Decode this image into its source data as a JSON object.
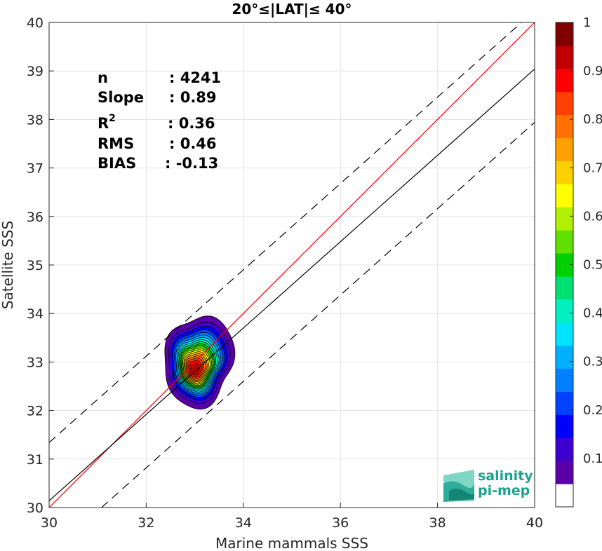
{
  "chart_data": {
    "type": "heatmap",
    "title": "20°≤|LAT|≤ 40°",
    "xlabel": "Marine mammals SSS",
    "ylabel": "Satellite SSS",
    "xlim": [
      30,
      40
    ],
    "ylim": [
      30,
      40
    ],
    "xticks": [
      "30",
      "32",
      "34",
      "36",
      "38",
      "40"
    ],
    "yticks": [
      "30",
      "31",
      "32",
      "33",
      "34",
      "35",
      "36",
      "37",
      "38",
      "39",
      "40"
    ],
    "grid": true,
    "density_peak": {
      "x": 33.0,
      "y": 32.85
    },
    "contour_levels": [
      0.05,
      0.1,
      0.15,
      0.2,
      0.25,
      0.3,
      0.35,
      0.4,
      0.45,
      0.5,
      0.55,
      0.6,
      0.65,
      0.7,
      0.75,
      0.8,
      0.85,
      0.9,
      0.95
    ],
    "lines": [
      {
        "name": "one-to-one",
        "style": "solid",
        "color": "#ff0000",
        "slope": 1.0,
        "intercept": 0.0
      },
      {
        "name": "regression",
        "style": "solid",
        "color": "#000000",
        "slope": 0.89,
        "intercept": 3.44
      },
      {
        "name": "upper-bound",
        "style": "dashed",
        "color": "#000000",
        "slope": 0.89,
        "intercept": 4.64
      },
      {
        "name": "lower-bound",
        "style": "dashed",
        "color": "#000000",
        "slope": 0.89,
        "intercept": 2.34
      }
    ],
    "colorbar": {
      "range": [
        0,
        1
      ],
      "ticks": [
        "0.1",
        "0.2",
        "0.3",
        "0.4",
        "0.5",
        "0.6",
        "0.7",
        "0.8",
        "0.9",
        "1"
      ],
      "colors": [
        "#ffffff",
        "#5b00a8",
        "#3c00d0",
        "#0000ff",
        "#0040ff",
        "#0080ff",
        "#00b0ff",
        "#00e5ff",
        "#00f0c0",
        "#00e070",
        "#00d000",
        "#60e000",
        "#b0f000",
        "#ffff00",
        "#ffd000",
        "#ffa000",
        "#ff7000",
        "#ff4000",
        "#ff0000",
        "#c00000",
        "#800000"
      ]
    },
    "stats": [
      {
        "label": "n",
        "value": ": 4241"
      },
      {
        "label": "Slope",
        "value": ": 0.89"
      },
      {
        "label": "R",
        "sup": "2",
        "value": ": 0.36"
      },
      {
        "label": "RMS",
        "value": ": 0.46"
      },
      {
        "label": "BIAS",
        "value": ": -0.13"
      }
    ]
  },
  "logo": {
    "line1": "salinity",
    "line2": "pi-mep"
  }
}
